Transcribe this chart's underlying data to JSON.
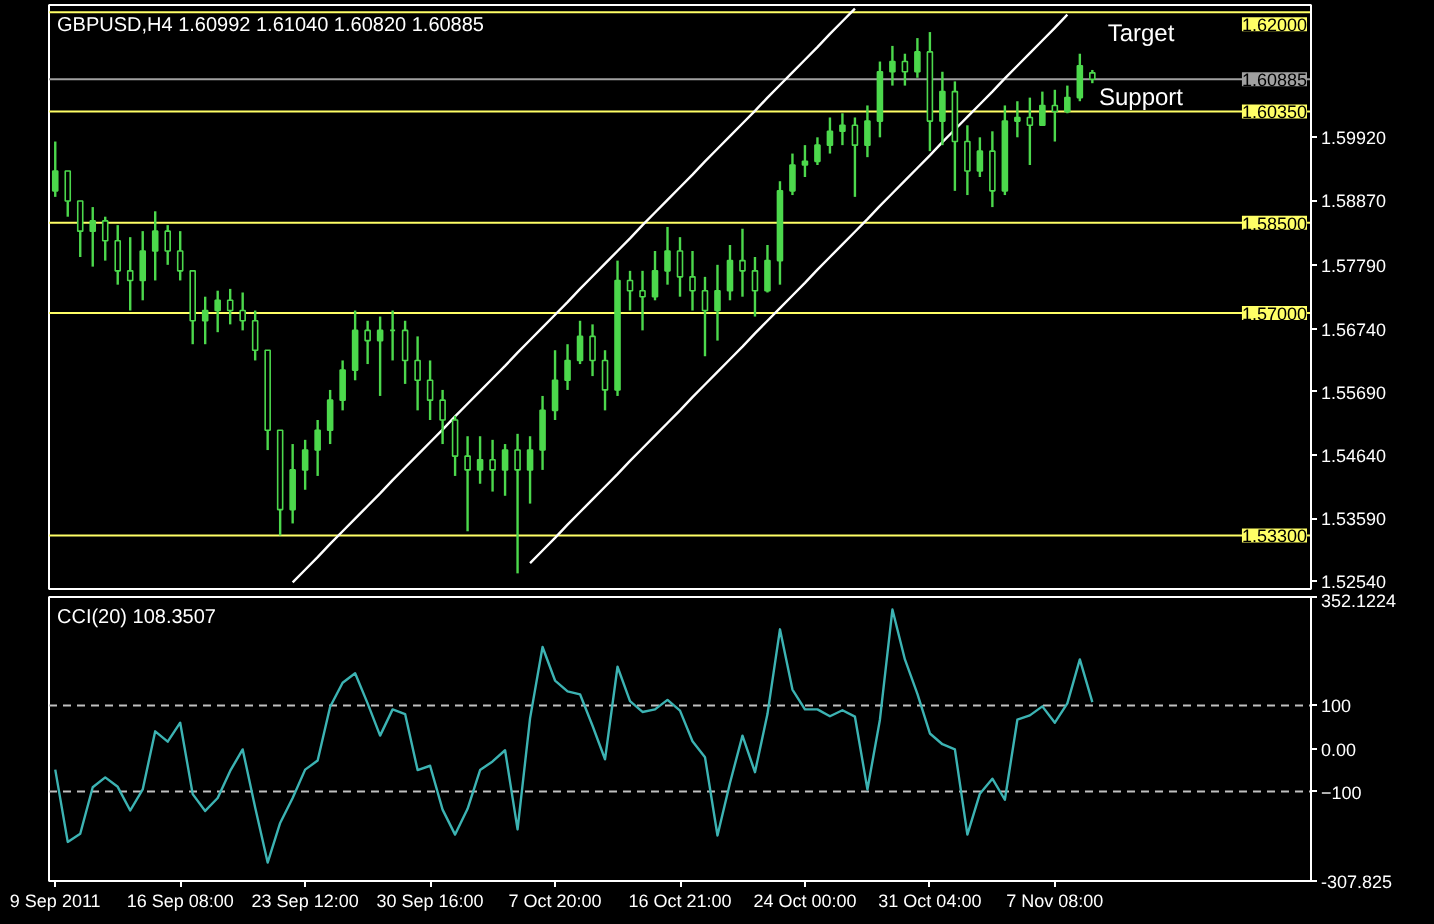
{
  "chart_data": [
    {
      "type": "candlestick",
      "title": "GBPUSD,H4  1.60992 1.61040 1.60820 1.60885",
      "color": "#4cd84c",
      "categories": [
        null,
        null,
        null,
        null,
        null,
        null,
        null,
        null,
        null,
        null,
        null,
        null,
        null,
        null,
        null,
        null,
        null,
        null,
        null,
        null,
        null,
        null,
        null,
        null,
        null,
        null,
        null,
        null,
        null,
        null,
        null,
        null,
        null,
        null,
        null,
        null,
        null,
        null,
        null,
        null,
        null,
        null,
        null,
        null,
        null,
        null,
        null,
        null,
        null,
        null,
        null,
        null,
        null,
        null,
        null,
        null,
        null,
        null,
        null,
        null,
        null,
        null,
        null,
        null,
        null,
        null,
        null,
        null,
        null,
        null,
        null,
        null,
        null,
        null,
        null,
        null,
        null,
        null,
        null,
        null,
        null,
        null,
        null,
        null,
        null,
        null,
        null,
        null,
        null,
        null,
        null,
        null,
        null,
        null,
        null,
        null,
        null,
        null,
        null,
        null,
        null
      ],
      "ohlc": [
        [
          1.5903,
          1.5985,
          1.5893,
          1.5936
        ],
        [
          1.5936,
          1.5936,
          1.586,
          1.5886
        ],
        [
          1.5886,
          1.5886,
          1.5793,
          1.5836
        ],
        [
          1.5836,
          1.5876,
          1.5777,
          1.5853
        ],
        [
          1.5853,
          1.586,
          1.5787,
          1.582
        ],
        [
          1.582,
          1.5846,
          1.5747,
          1.577
        ],
        [
          1.577,
          1.5826,
          1.5704,
          1.5754
        ],
        [
          1.5754,
          1.5836,
          1.5721,
          1.5803
        ],
        [
          1.5803,
          1.5869,
          1.5754,
          1.5836
        ],
        [
          1.5836,
          1.5846,
          1.578,
          1.5803
        ],
        [
          1.5803,
          1.5836,
          1.5754,
          1.577
        ],
        [
          1.577,
          1.577,
          1.5648,
          1.5687
        ],
        [
          1.5687,
          1.5727,
          1.5648,
          1.5704
        ],
        [
          1.5704,
          1.5737,
          1.5668,
          1.5721
        ],
        [
          1.5721,
          1.574,
          1.5681,
          1.5704
        ],
        [
          1.5704,
          1.5734,
          1.5671,
          1.5687
        ],
        [
          1.5687,
          1.5704,
          1.5621,
          1.5638
        ],
        [
          1.5638,
          1.5638,
          1.5472,
          1.5505
        ],
        [
          1.5505,
          1.5505,
          1.533,
          1.5373
        ],
        [
          1.5373,
          1.5482,
          1.535,
          1.5439
        ],
        [
          1.5439,
          1.5489,
          1.5406,
          1.5472
        ],
        [
          1.5472,
          1.5522,
          1.5429,
          1.5505
        ],
        [
          1.5505,
          1.5572,
          1.5482,
          1.5555
        ],
        [
          1.5555,
          1.5621,
          1.5538,
          1.5605
        ],
        [
          1.5605,
          1.5704,
          1.5588,
          1.5671
        ],
        [
          1.5671,
          1.5687,
          1.5615,
          1.5654
        ],
        [
          1.5654,
          1.5694,
          1.5562,
          1.5671
        ],
        [
          1.5671,
          1.5704,
          1.5621,
          1.5671
        ],
        [
          1.5671,
          1.5687,
          1.5582,
          1.5621
        ],
        [
          1.5621,
          1.5661,
          1.5538,
          1.5588
        ],
        [
          1.5588,
          1.5621,
          1.5522,
          1.5555
        ],
        [
          1.5555,
          1.5572,
          1.5482,
          1.5522
        ],
        [
          1.5522,
          1.5529,
          1.5429,
          1.5462
        ],
        [
          1.5462,
          1.5495,
          1.5337,
          1.5439
        ],
        [
          1.5439,
          1.5495,
          1.5416,
          1.5456
        ],
        [
          1.5456,
          1.5489,
          1.5403,
          1.5439
        ],
        [
          1.5439,
          1.5482,
          1.5396,
          1.5472
        ],
        [
          1.5472,
          1.5499,
          1.5267,
          1.5439
        ],
        [
          1.5439,
          1.5495,
          1.5383,
          1.5472
        ],
        [
          1.5472,
          1.5562,
          1.5439,
          1.5538
        ],
        [
          1.5538,
          1.5638,
          1.5522,
          1.5588
        ],
        [
          1.5588,
          1.5648,
          1.5572,
          1.5621
        ],
        [
          1.5621,
          1.5687,
          1.5615,
          1.5661
        ],
        [
          1.5661,
          1.5681,
          1.5595,
          1.5621
        ],
        [
          1.5621,
          1.5638,
          1.5538,
          1.5572
        ],
        [
          1.5572,
          1.5787,
          1.5562,
          1.5754
        ],
        [
          1.5754,
          1.577,
          1.5704,
          1.5737
        ],
        [
          1.5737,
          1.577,
          1.5671,
          1.5727
        ],
        [
          1.5727,
          1.5803,
          1.5721,
          1.577
        ],
        [
          1.577,
          1.5843,
          1.5747,
          1.5803
        ],
        [
          1.5803,
          1.5826,
          1.5727,
          1.576
        ],
        [
          1.576,
          1.5803,
          1.5704,
          1.5737
        ],
        [
          1.5737,
          1.576,
          1.5628,
          1.5704
        ],
        [
          1.5704,
          1.578,
          1.5654,
          1.5737
        ],
        [
          1.5737,
          1.5813,
          1.5721,
          1.5787
        ],
        [
          1.5787,
          1.584,
          1.5727,
          1.577
        ],
        [
          1.577,
          1.5793,
          1.5694,
          1.5737
        ],
        [
          1.5737,
          1.5813,
          1.5734,
          1.5787
        ],
        [
          1.5787,
          1.5919,
          1.5747,
          1.5903
        ],
        [
          1.5903,
          1.5965,
          1.5896,
          1.5946
        ],
        [
          1.5946,
          1.5979,
          1.5926,
          1.5952
        ],
        [
          1.5952,
          1.5992,
          1.5946,
          1.5979
        ],
        [
          1.5979,
          1.6025,
          1.5965,
          1.6002
        ],
        [
          1.6002,
          1.6032,
          1.5979,
          1.6012
        ],
        [
          1.6012,
          1.6025,
          1.5893,
          1.5979
        ],
        [
          1.5979,
          1.6045,
          1.5959,
          1.6019
        ],
        [
          1.6019,
          1.6118,
          1.5992,
          1.6101
        ],
        [
          1.6101,
          1.6144,
          1.6078,
          1.6118
        ],
        [
          1.6118,
          1.6131,
          1.6078,
          1.6101
        ],
        [
          1.6101,
          1.6157,
          1.6091,
          1.6134
        ],
        [
          1.6134,
          1.6167,
          1.5969,
          1.6019
        ],
        [
          1.6019,
          1.6101,
          1.5979,
          1.6068
        ],
        [
          1.6068,
          1.6085,
          1.5903,
          1.5985
        ],
        [
          1.5985,
          1.6012,
          1.5896,
          1.5936
        ],
        [
          1.5936,
          1.5992,
          1.5926,
          1.5969
        ],
        [
          1.5969,
          1.6002,
          1.5876,
          1.5903
        ],
        [
          1.5903,
          1.6045,
          1.5896,
          1.6019
        ],
        [
          1.6019,
          1.6052,
          1.5992,
          1.6025
        ],
        [
          1.6025,
          1.6058,
          1.5946,
          1.6012
        ],
        [
          1.6012,
          1.6068,
          1.6012,
          1.6045
        ],
        [
          1.6045,
          1.6071,
          1.5985,
          1.6035
        ],
        [
          1.6035,
          1.6078,
          1.6032,
          1.6058
        ],
        [
          1.6058,
          1.6131,
          1.6052,
          1.6111
        ],
        [
          1.60992,
          1.6104,
          1.6082,
          1.60885
        ],
        null,
        null,
        null,
        null,
        null,
        null,
        null,
        null,
        null,
        null,
        null,
        null,
        null,
        null,
        null,
        null,
        null
      ],
      "series": [
        {
          "type": "line",
          "color": "#ffffff",
          "values": [
            null,
            null,
            null,
            null,
            null,
            null,
            null,
            null,
            null,
            null,
            null,
            null,
            null,
            null,
            null,
            null,
            null,
            null,
            null,
            1.5252,
            1.5273,
            1.5294,
            1.5316,
            1.5337,
            1.5358,
            1.5379,
            1.54,
            1.5422,
            1.5443,
            1.5464,
            1.5485,
            1.5506,
            1.5528,
            1.5549,
            1.557,
            1.5591,
            1.5612,
            1.5634,
            1.5655,
            1.5676,
            1.5697,
            1.5718,
            1.574,
            1.5761,
            1.5782,
            1.5803,
            1.5824,
            1.5846,
            1.5867,
            1.5888,
            1.5909,
            1.593,
            1.5952,
            1.5973,
            1.5994,
            1.6015,
            1.6036,
            1.6058,
            1.6079,
            1.61,
            1.6121,
            1.6142,
            1.6164,
            1.6185,
            1.6206,
            null,
            null,
            null,
            null,
            null,
            null,
            null,
            null,
            null,
            null,
            null,
            null,
            null,
            null,
            null,
            null,
            null,
            null,
            null,
            null,
            null,
            null,
            null,
            null,
            null,
            null,
            null,
            null,
            null,
            null,
            null,
            null,
            null,
            null,
            null,
            null
          ]
        },
        {
          "type": "line",
          "color": "#ffffff",
          "values": [
            null,
            null,
            null,
            null,
            null,
            null,
            null,
            null,
            null,
            null,
            null,
            null,
            null,
            null,
            null,
            null,
            null,
            null,
            null,
            null,
            null,
            null,
            null,
            null,
            null,
            null,
            null,
            null,
            null,
            null,
            null,
            null,
            null,
            null,
            null,
            null,
            null,
            null,
            1.5284,
            1.5305,
            1.5326,
            1.5348,
            1.5369,
            1.539,
            1.5411,
            1.5432,
            1.5454,
            1.5475,
            1.5496,
            1.5517,
            1.5538,
            1.556,
            1.5581,
            1.5602,
            1.5623,
            1.5644,
            1.5666,
            1.5687,
            1.5708,
            1.5729,
            1.575,
            1.5772,
            1.5793,
            1.5814,
            1.5835,
            1.5856,
            1.5878,
            1.5899,
            1.592,
            1.5941,
            1.5962,
            1.5984,
            1.6005,
            1.6026,
            1.6047,
            1.6068,
            1.609,
            1.6111,
            1.6132,
            1.6153,
            1.6174,
            1.6196,
            null,
            null,
            null,
            null,
            null,
            null,
            null,
            null,
            null,
            null,
            null,
            null,
            null,
            null,
            null,
            null,
            null,
            null,
            null
          ]
        }
      ],
      "ylim": [
        1.5241,
        1.6212
      ],
      "yticks": [
        {
          "value": 1.5992,
          "label": "1.59920"
        },
        {
          "value": 1.5887,
          "label": "1.58870"
        },
        {
          "value": 1.5779,
          "label": "1.57790"
        },
        {
          "value": 1.5674,
          "label": "1.56740"
        },
        {
          "value": 1.5569,
          "label": "1.55690"
        },
        {
          "value": 1.5464,
          "label": "1.54640"
        },
        {
          "value": 1.5359,
          "label": "1.53590"
        },
        {
          "value": 1.5254,
          "label": "1.52540"
        }
      ],
      "ref_lines": [
        {
          "axis": "y",
          "value": 1.62,
          "label": "1.62000",
          "color": "#ffff66"
        },
        {
          "axis": "y",
          "value": 1.60885,
          "label": "1.60885",
          "color": "#a0a0a0"
        },
        {
          "axis": "y",
          "value": 1.6035,
          "label": "1.60350",
          "color": "#ffff66"
        },
        {
          "axis": "y",
          "value": 1.585,
          "label": "1.58500",
          "color": "#ffff66"
        },
        {
          "axis": "y",
          "value": 1.57,
          "label": "1.57000",
          "color": "#ffff66"
        },
        {
          "axis": "y",
          "value": 1.533,
          "label": "1.53300",
          "color": "#ffff66"
        }
      ],
      "annotations": [
        "Target",
        "Support"
      ],
      "tick_labels": "y"
    },
    {
      "type": "line",
      "title": "CCI(20) 108.3507",
      "categories": [
        "9 Sep 2011",
        null,
        null,
        null,
        null,
        null,
        null,
        null,
        null,
        null,
        "16 Sep 08:00",
        null,
        null,
        null,
        null,
        null,
        null,
        null,
        null,
        null,
        "23 Sep 12:00",
        null,
        null,
        null,
        null,
        null,
        null,
        null,
        null,
        null,
        "30 Sep 16:00",
        null,
        null,
        null,
        null,
        null,
        null,
        null,
        null,
        null,
        "7 Oct 20:00",
        null,
        null,
        null,
        null,
        null,
        null,
        null,
        null,
        null,
        "16 Oct 21:00",
        null,
        null,
        null,
        null,
        null,
        null,
        null,
        null,
        null,
        "24 Oct 00:00",
        null,
        null,
        null,
        null,
        null,
        null,
        null,
        null,
        null,
        "31 Oct 04:00",
        null,
        null,
        null,
        null,
        null,
        null,
        null,
        null,
        null,
        "7 Nov 08:00",
        null,
        null,
        null,
        null,
        null,
        null,
        null,
        null,
        null,
        null,
        null,
        null,
        null,
        null,
        null,
        null,
        null,
        null,
        null,
        null
      ],
      "series": [
        {
          "color": "#3cb3b3",
          "values": [
            -49,
            -217,
            -198,
            -90,
            -67,
            -89,
            -144,
            -95,
            40,
            16,
            60,
            -106,
            -145,
            -115,
            -52,
            -2,
            -137,
            -265,
            -173,
            -115,
            -49,
            -28,
            97,
            153,
            175,
            105,
            30,
            91,
            80,
            -50,
            -40,
            -142,
            -200,
            -140,
            -50,
            -30,
            -4,
            -188,
            70,
            236,
            158,
            133,
            126,
            53,
            -25,
            190,
            110,
            85,
            91,
            113,
            88,
            17,
            -20,
            -202,
            -80,
            30,
            -55,
            80,
            277,
            137,
            91,
            91,
            75,
            89,
            74,
            -95,
            67,
            323,
            207,
            127,
            35,
            10,
            -2,
            -200,
            -105,
            -70,
            -119,
            67,
            77,
            98,
            60,
            105,
            207,
            108,
            null,
            null,
            null,
            null,
            null,
            null,
            null,
            null,
            null,
            null,
            null,
            null,
            null,
            null,
            null,
            null,
            null
          ]
        }
      ],
      "ylim": [
        -307.825,
        352.1224
      ],
      "yticks": [
        {
          "value": 352.1224,
          "label": "352.1224"
        },
        100,
        {
          "value": 0,
          "label": "0.00"
        },
        -100,
        {
          "value": -307.825,
          "label": "-307.825"
        }
      ],
      "ref_lines": [
        {
          "axis": "y",
          "value": 100,
          "color": "#c0c0c0",
          "line_style": "dashed"
        },
        {
          "axis": "y",
          "value": -100,
          "color": "#c0c0c0",
          "line_style": "dashed"
        }
      ]
    }
  ]
}
